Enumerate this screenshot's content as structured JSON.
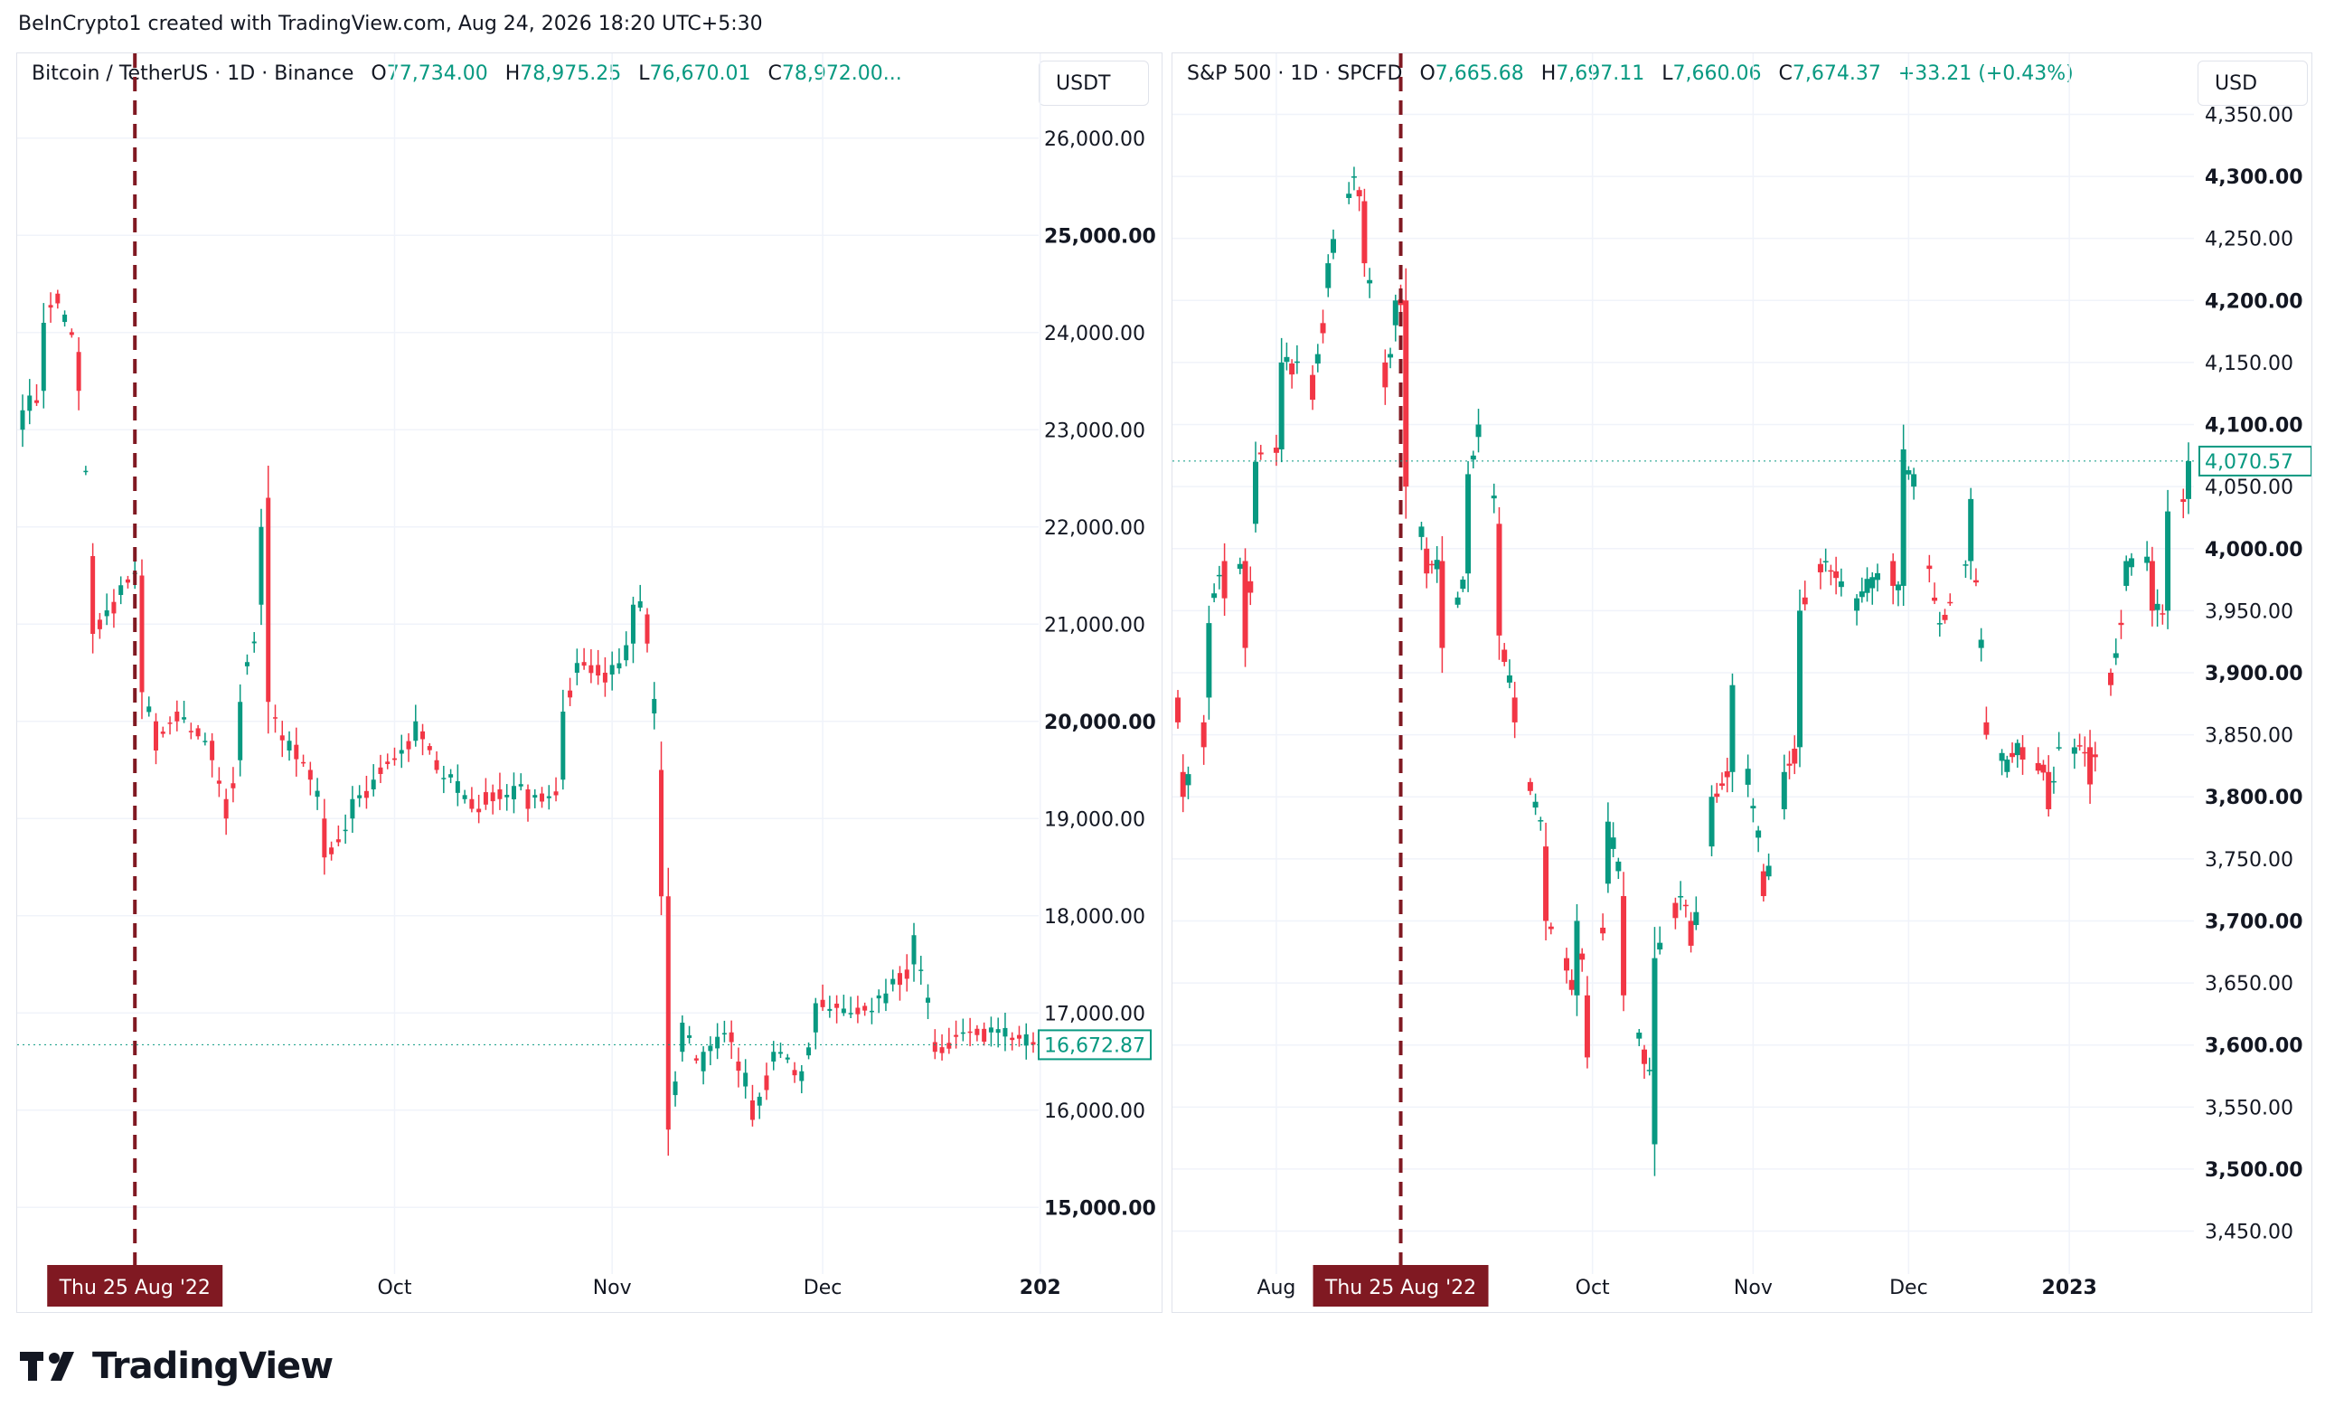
{
  "caption": "BeInCrypto1 created with TradingView.com, Aug 24, 2026 18:20 UTC+5:30",
  "brand": "TradingView",
  "colors": {
    "up": "#089981",
    "down": "#f23645",
    "marker": "#801922",
    "grid": "#f0f3fa"
  },
  "charts": [
    {
      "symbol": "Bitcoin / TetherUS · 1D · Binance",
      "ohlc": [
        {
          "k": "O",
          "v": "77,734.00"
        },
        {
          "k": "H",
          "v": "78,975.25"
        },
        {
          "k": "L",
          "v": "76,670.01"
        },
        {
          "k": "C",
          "v": "78,972.00..."
        }
      ],
      "unit": "USDT",
      "last_price": "16,672.87",
      "marker_label": "Thu 25 Aug '22",
      "y_ticks": [
        {
          "label": "26,000.00",
          "bold": false
        },
        {
          "label": "25,000.00",
          "bold": true
        },
        {
          "label": "24,000.00",
          "bold": false
        },
        {
          "label": "23,000.00",
          "bold": false
        },
        {
          "label": "22,000.00",
          "bold": false
        },
        {
          "label": "21,000.00",
          "bold": false
        },
        {
          "label": "20,000.00",
          "bold": true
        },
        {
          "label": "19,000.00",
          "bold": false
        },
        {
          "label": "18,000.00",
          "bold": false
        },
        {
          "label": "17,000.00",
          "bold": false
        },
        {
          "label": "16,000.00",
          "bold": false
        },
        {
          "label": "15,000.00",
          "bold": true
        }
      ],
      "x_ticks": [
        {
          "label": "Oct",
          "bold": false
        },
        {
          "label": "Nov",
          "bold": false
        },
        {
          "label": "Dec",
          "bold": false
        },
        {
          "label": "202",
          "bold": true
        }
      ]
    },
    {
      "symbol": "S&P 500 · 1D · SPCFD",
      "ohlc": [
        {
          "k": "O",
          "v": "7,665.68"
        },
        {
          "k": "H",
          "v": "7,697.11"
        },
        {
          "k": "L",
          "v": "7,660.06"
        },
        {
          "k": "C",
          "v": "7,674.37"
        },
        {
          "k": "",
          "v": "+33.21 (+0.43%)"
        }
      ],
      "unit": "USD",
      "last_price": "4,070.57",
      "marker_label": "Thu 25 Aug '22",
      "y_ticks": [
        {
          "label": "4,350.00",
          "bold": false
        },
        {
          "label": "4,300.00",
          "bold": true
        },
        {
          "label": "4,250.00",
          "bold": false
        },
        {
          "label": "4,200.00",
          "bold": true
        },
        {
          "label": "4,150.00",
          "bold": false
        },
        {
          "label": "4,100.00",
          "bold": true
        },
        {
          "label": "4,050.00",
          "bold": false
        },
        {
          "label": "4,000.00",
          "bold": true
        },
        {
          "label": "3,950.00",
          "bold": false
        },
        {
          "label": "3,900.00",
          "bold": true
        },
        {
          "label": "3,850.00",
          "bold": false
        },
        {
          "label": "3,800.00",
          "bold": true
        },
        {
          "label": "3,750.00",
          "bold": false
        },
        {
          "label": "3,700.00",
          "bold": true
        },
        {
          "label": "3,650.00",
          "bold": false
        },
        {
          "label": "3,600.00",
          "bold": true
        },
        {
          "label": "3,550.00",
          "bold": false
        },
        {
          "label": "3,500.00",
          "bold": true
        },
        {
          "label": "3,450.00",
          "bold": false
        }
      ],
      "x_ticks": [
        {
          "label": "Aug",
          "bold": false
        },
        {
          "label": "Oct",
          "bold": false
        },
        {
          "label": "Nov",
          "bold": false
        },
        {
          "label": "Dec",
          "bold": false
        },
        {
          "label": "2023",
          "bold": true
        }
      ]
    }
  ],
  "chart_data": [
    {
      "type": "candlestick",
      "title": "Bitcoin / TetherUS · 1D · Binance",
      "ylabel": "USDT",
      "ylim": [
        14500,
        26500
      ],
      "x_range": [
        "2022-08-09",
        "2022-12-31"
      ],
      "marker_date": "2022-08-25",
      "last_value": 16672.87,
      "anchors": [
        [
          "2022-08-09",
          23000,
          23200
        ],
        [
          "2022-08-12",
          23400,
          24100
        ],
        [
          "2022-08-14",
          24400,
          24300
        ],
        [
          "2022-08-17",
          23800,
          23400
        ],
        [
          "2022-08-19",
          21700,
          20900
        ],
        [
          "2022-08-23",
          21300,
          21400
        ],
        [
          "2022-08-26",
          21500,
          20300
        ],
        [
          "2022-08-28",
          20000,
          19700
        ],
        [
          "2022-08-31",
          20100,
          20000
        ],
        [
          "2022-09-05",
          19800,
          19600
        ],
        [
          "2022-09-07",
          19200,
          19000
        ],
        [
          "2022-09-09",
          19600,
          20200
        ],
        [
          "2022-09-12",
          21200,
          22000
        ],
        [
          "2022-09-13",
          22300,
          20200
        ],
        [
          "2022-09-16",
          19700,
          19800
        ],
        [
          "2022-09-19",
          19500,
          19400
        ],
        [
          "2022-09-21",
          19000,
          18600
        ],
        [
          "2022-09-25",
          19000,
          19200
        ],
        [
          "2022-09-28",
          19300,
          19400
        ],
        [
          "2022-10-04",
          19800,
          20000
        ],
        [
          "2022-10-07",
          19600,
          19500
        ],
        [
          "2022-10-12",
          19200,
          19100
        ],
        [
          "2022-10-16",
          19300,
          19200
        ],
        [
          "2022-10-20",
          19300,
          19100
        ],
        [
          "2022-10-25",
          19400,
          20100
        ],
        [
          "2022-10-27",
          20500,
          20600
        ],
        [
          "2022-10-31",
          20500,
          20400
        ],
        [
          "2022-11-04",
          20800,
          21200
        ],
        [
          "2022-11-06",
          21100,
          20800
        ],
        [
          "2022-11-08",
          19500,
          18200
        ],
        [
          "2022-11-09",
          18200,
          15800
        ],
        [
          "2022-11-11",
          16600,
          16900
        ],
        [
          "2022-11-14",
          16400,
          16600
        ],
        [
          "2022-11-18",
          16800,
          16700
        ],
        [
          "2022-11-21",
          16100,
          15900
        ],
        [
          "2022-11-24",
          16500,
          16600
        ],
        [
          "2022-11-28",
          16300,
          16400
        ],
        [
          "2022-11-30",
          16800,
          17100
        ],
        [
          "2022-12-05",
          17000,
          17000
        ],
        [
          "2022-12-10",
          17100,
          17200
        ],
        [
          "2022-12-14",
          17500,
          17800
        ],
        [
          "2022-12-17",
          16700,
          16600
        ],
        [
          "2022-12-21",
          16800,
          16800
        ],
        [
          "2022-12-25",
          16800,
          16850
        ],
        [
          "2022-12-31",
          16700,
          16672.87
        ]
      ]
    },
    {
      "type": "candlestick",
      "title": "S&P 500 · 1D · SPCFD",
      "ylabel": "USD",
      "ylim": [
        3430,
        4370
      ],
      "x_range": [
        "2022-07-13",
        "2023-01-24"
      ],
      "marker_date": "2022-08-25",
      "last_value": 4070.57,
      "anchors": [
        [
          "2022-07-13",
          3880,
          3860
        ],
        [
          "2022-07-14",
          3820,
          3800
        ],
        [
          "2022-07-18",
          3860,
          3840
        ],
        [
          "2022-07-19",
          3880,
          3940
        ],
        [
          "2022-07-22",
          3990,
          3960
        ],
        [
          "2022-07-26",
          3990,
          3920
        ],
        [
          "2022-07-28",
          4020,
          4070
        ],
        [
          "2022-08-02",
          4080,
          4150
        ],
        [
          "2022-08-08",
          4140,
          4120
        ],
        [
          "2022-08-11",
          4210,
          4230
        ],
        [
          "2022-08-16",
          4300,
          4300
        ],
        [
          "2022-08-18",
          4280,
          4230
        ],
        [
          "2022-08-22",
          4150,
          4130
        ],
        [
          "2022-08-24",
          4180,
          4200
        ],
        [
          "2022-08-26",
          4200,
          4050
        ],
        [
          "2022-08-30",
          4000,
          3980
        ],
        [
          "2022-09-02",
          3990,
          3920
        ],
        [
          "2022-09-07",
          3980,
          4060
        ],
        [
          "2022-09-09",
          4090,
          4100
        ],
        [
          "2022-09-13",
          4020,
          3930
        ],
        [
          "2022-09-16",
          3880,
          3860
        ],
        [
          "2022-09-22",
          3760,
          3700
        ],
        [
          "2022-09-26",
          3670,
          3660
        ],
        [
          "2022-09-28",
          3640,
          3700
        ],
        [
          "2022-09-30",
          3640,
          3590
        ],
        [
          "2022-10-04",
          3730,
          3780
        ],
        [
          "2022-10-07",
          3720,
          3640
        ],
        [
          "2022-10-12",
          3580,
          3580
        ],
        [
          "2022-10-13",
          3520,
          3670
        ],
        [
          "2022-10-18",
          3720,
          3720
        ],
        [
          "2022-10-20",
          3700,
          3680
        ],
        [
          "2022-10-24",
          3760,
          3800
        ],
        [
          "2022-10-28",
          3820,
          3890
        ],
        [
          "2022-11-03",
          3740,
          3720
        ],
        [
          "2022-11-07",
          3790,
          3820
        ],
        [
          "2022-11-10",
          3840,
          3950
        ],
        [
          "2022-11-15",
          3990,
          3990
        ],
        [
          "2022-11-21",
          3950,
          3960
        ],
        [
          "2022-11-28",
          3990,
          3970
        ],
        [
          "2022-11-30",
          3970,
          4080
        ],
        [
          "2022-12-02",
          4050,
          4060
        ],
        [
          "2022-12-07",
          3940,
          3940
        ],
        [
          "2022-12-13",
          3990,
          4040
        ],
        [
          "2022-12-16",
          3860,
          3850
        ],
        [
          "2022-12-20",
          3820,
          3830
        ],
        [
          "2022-12-23",
          3840,
          3830
        ],
        [
          "2022-12-28",
          3820,
          3790
        ],
        [
          "2022-12-30",
          3840,
          3840
        ],
        [
          "2023-01-05",
          3840,
          3810
        ],
        [
          "2023-01-09",
          3900,
          3890
        ],
        [
          "2023-01-12",
          3970,
          3990
        ],
        [
          "2023-01-17",
          3990,
          3950
        ],
        [
          "2023-01-20",
          3950,
          4030
        ],
        [
          "2023-01-24",
          4040,
          4070.57
        ]
      ]
    }
  ]
}
